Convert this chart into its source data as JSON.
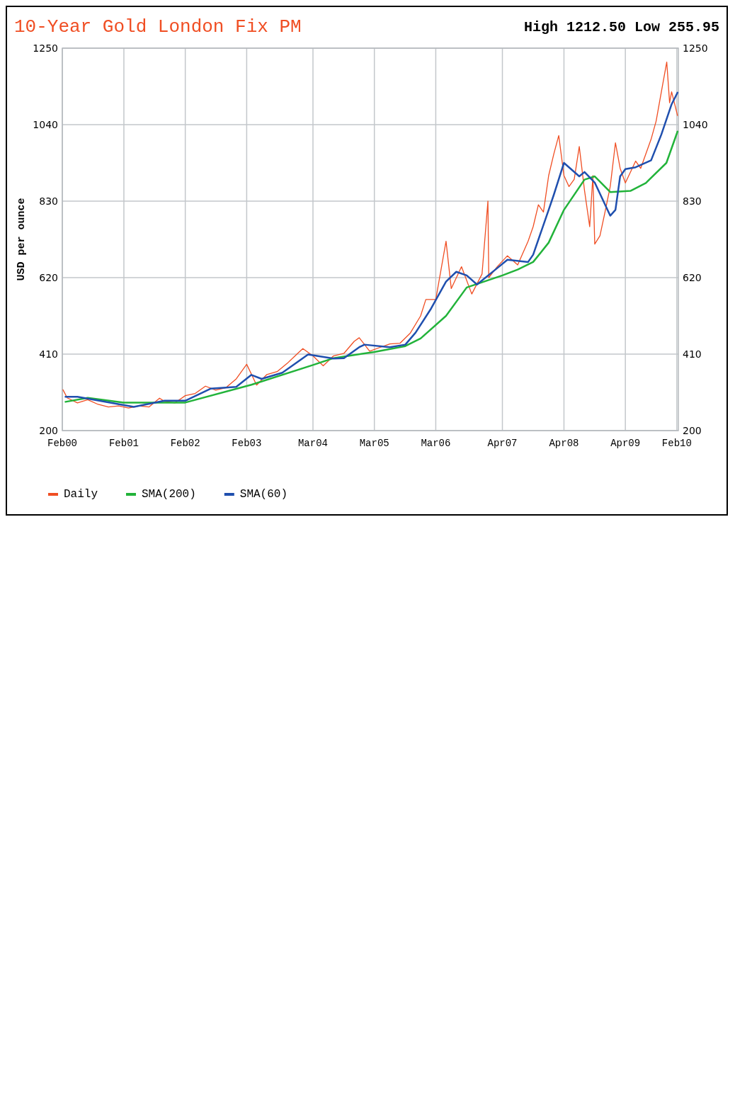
{
  "chart_data": {
    "type": "line",
    "title": "10-Year Gold London Fix PM",
    "ylabel": "USD per ounce",
    "annotations": [
      "High 1212.50 Low 255.95"
    ],
    "xlim": [
      "2000-02-01",
      "2010-02-10"
    ],
    "xticks": [
      {
        "value": "2000-02-01",
        "label": "Feb00"
      },
      {
        "value": "2001-02-01",
        "label": "Feb01"
      },
      {
        "value": "2002-02-01",
        "label": "Feb02"
      },
      {
        "value": "2003-02-01",
        "label": "Feb03"
      },
      {
        "value": "2004-03-01",
        "label": "Mar04"
      },
      {
        "value": "2005-03-01",
        "label": "Mar05"
      },
      {
        "value": "2006-03-01",
        "label": "Mar06"
      },
      {
        "value": "2007-04-01",
        "label": "Apr07"
      },
      {
        "value": "2008-04-01",
        "label": "Apr08"
      },
      {
        "value": "2009-04-01",
        "label": "Apr09"
      },
      {
        "value": "2010-02-01",
        "label": "Feb10"
      }
    ],
    "ylim": [
      200,
      1250
    ],
    "yticks": [
      200,
      410,
      620,
      830,
      1040,
      1250
    ],
    "y2lim": [
      200,
      1250
    ],
    "y2ticks": [
      200,
      410,
      620,
      830,
      1040,
      1250
    ],
    "grid": true,
    "legend": "bottom",
    "marker": "none",
    "line_style": "solid",
    "series": [
      {
        "name": "Daily",
        "color": "#f04e23",
        "x": [
          "2000-02-05",
          "2000-03",
          "2000-05",
          "2000-07",
          "2000-09",
          "2000-11",
          "2001-01",
          "2001-03",
          "2001-05",
          "2001-07",
          "2001-09",
          "2001-10",
          "2001-12",
          "2002-02",
          "2002-04",
          "2002-06",
          "2002-08",
          "2002-10",
          "2002-12",
          "2003-02",
          "2003-04",
          "2003-06",
          "2003-08",
          "2003-10",
          "2003-12",
          "2004-01",
          "2004-03",
          "2004-05",
          "2004-07",
          "2004-09",
          "2004-11",
          "2004-12",
          "2005-02",
          "2005-04",
          "2005-06",
          "2005-08",
          "2005-10",
          "2005-12",
          "2006-01",
          "2006-03",
          "2006-05",
          "2006-06",
          "2006-08",
          "2006-10",
          "2006-12",
          "2007-01-05",
          "2007-01-10",
          "2007-03",
          "2007-05",
          "2007-07",
          "2007-09",
          "2007-10",
          "2007-11",
          "2007-12",
          "2008-01",
          "2008-02",
          "2008-03",
          "2008-04",
          "2008-05",
          "2008-06",
          "2008-07",
          "2008-08",
          "2008-09",
          "2008-09-20",
          "2008-10",
          "2008-11",
          "2008-12",
          "2009-01",
          "2009-02",
          "2009-03",
          "2009-04",
          "2009-06",
          "2009-07",
          "2009-09",
          "2009-10",
          "2009-11",
          "2009-12-03",
          "2009-12-20",
          "2010-01",
          "2010-02-05"
        ],
        "values": [
          312,
          290,
          276,
          285,
          272,
          265,
          268,
          262,
          268,
          265,
          289,
          280,
          276,
          296,
          302,
          322,
          311,
          318,
          342,
          382,
          325,
          354,
          362,
          385,
          412,
          425,
          405,
          378,
          405,
          412,
          445,
          455,
          418,
          428,
          438,
          440,
          468,
          515,
          560,
          560,
          720,
          590,
          650,
          575,
          630,
          830,
          620,
          650,
          680,
          655,
          720,
          760,
          820,
          800,
          900,
          960,
          1010,
          900,
          870,
          890,
          980,
          860,
          760,
          900,
          712,
          735,
          800,
          870,
          990,
          920,
          880,
          940,
          920,
          1000,
          1050,
          1130,
          1212,
          1100,
          1130,
          1065
        ]
      },
      {
        "name": "SMA(200)",
        "color": "#22b33a",
        "x": [
          "2000-02-20",
          "2000-07",
          "2001-02",
          "2002-02",
          "2003-03",
          "2004-03",
          "2004-07",
          "2005-03",
          "2005-09",
          "2005-12",
          "2006-05",
          "2006-09",
          "2007-04",
          "2007-07",
          "2007-10",
          "2008-01",
          "2008-04",
          "2008-08",
          "2008-10",
          "2009-01",
          "2009-05",
          "2009-08",
          "2009-12",
          "2010-02-05"
        ],
        "values": [
          279,
          290,
          277,
          277,
          326,
          380,
          399,
          416,
          432,
          453,
          515,
          593,
          626,
          642,
          663,
          716,
          806,
          889,
          898,
          855,
          858,
          880,
          935,
          1021
        ]
      },
      {
        "name": "SMA(60)",
        "color": "#1f4fae",
        "x": [
          "2000-02-20",
          "2000-05",
          "2001-04",
          "2001-10",
          "2002-02",
          "2002-07",
          "2002-12",
          "2003-03",
          "2003-05",
          "2003-09",
          "2004-02",
          "2004-07",
          "2004-09",
          "2004-12",
          "2005-01",
          "2005-06",
          "2005-09",
          "2005-11",
          "2006-02",
          "2006-05",
          "2006-07",
          "2006-09",
          "2006-11",
          "2007-03",
          "2007-05",
          "2007-09",
          "2007-10",
          "2008-01",
          "2008-02",
          "2008-04",
          "2008-07",
          "2008-08",
          "2008-10",
          "2009-01",
          "2009-02",
          "2009-03",
          "2009-04",
          "2009-06",
          "2009-09",
          "2009-11",
          "2010-01",
          "2010-02-05"
        ],
        "values": [
          293,
          293,
          265,
          282,
          282,
          315,
          320,
          353,
          342,
          359,
          409,
          398,
          399,
          429,
          436,
          429,
          436,
          469,
          535,
          609,
          636,
          626,
          601,
          646,
          669,
          663,
          683,
          806,
          848,
          935,
          898,
          910,
          881,
          790,
          806,
          898,
          918,
          923,
          942,
          1013,
          1096,
          1128
        ]
      }
    ]
  }
}
